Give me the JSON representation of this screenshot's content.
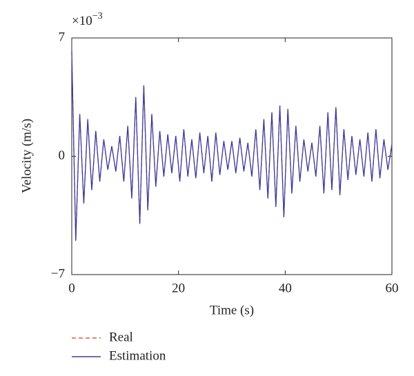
{
  "chart_data": {
    "type": "line",
    "xlabel": "Time (s)",
    "ylabel": "Velocity (m/s)",
    "y_multiplier": {
      "base": "×10",
      "exponent": "−3"
    },
    "xlim": [
      0,
      60
    ],
    "xticks": [
      0,
      20,
      40,
      60
    ],
    "ylim": [
      -7,
      7
    ],
    "yticks": [
      {
        "value": -7,
        "label": "−7"
      },
      0,
      7
    ],
    "grid": false,
    "legend": "below",
    "x": [
      0,
      0.75,
      1.5,
      2.25,
      3,
      3.75,
      4.5,
      5.25,
      6,
      6.75,
      7.5,
      8.25,
      9,
      9.75,
      10.5,
      11.25,
      12,
      12.75,
      13.5,
      14.25,
      15,
      15.75,
      16.5,
      17.25,
      18,
      18.75,
      19.5,
      20.25,
      21,
      21.75,
      22.5,
      23.25,
      24,
      24.75,
      25.5,
      26.25,
      27,
      27.75,
      28.5,
      29.25,
      30,
      30.75,
      31.5,
      32.25,
      33,
      33.75,
      34.5,
      35.25,
      36,
      36.75,
      37.5,
      38.25,
      39,
      39.75,
      40.5,
      41.25,
      42,
      42.75,
      43.5,
      44.25,
      45,
      45.75,
      46.5,
      47.25,
      48,
      48.75,
      49.5,
      50.25,
      51,
      51.75,
      52.5,
      53.25,
      54,
      54.75,
      55.5,
      56.25,
      57,
      57.75,
      58.5,
      59.25,
      60
    ],
    "series": [
      {
        "name": "Real",
        "color": "#d9632b",
        "dash": true,
        "values": [
          6.2,
          -5.0,
          2.5,
          -2.8,
          2.2,
          -2.0,
          1.5,
          -1.5,
          1.0,
          -0.8,
          0.6,
          -0.9,
          1.2,
          -1.5,
          1.8,
          -2.5,
          3.5,
          -4.0,
          4.2,
          -3.2,
          2.5,
          -1.8,
          1.5,
          -1.2,
          1.3,
          -1.0,
          1.2,
          -1.5,
          1.6,
          -1.2,
          1.0,
          -1.3,
          1.4,
          -1.0,
          1.2,
          -1.5,
          1.4,
          -1.1,
          0.9,
          -0.8,
          0.9,
          -1.0,
          1.1,
          -0.9,
          0.8,
          -1.2,
          1.6,
          -2.0,
          2.2,
          -2.5,
          2.6,
          -3.0,
          3.0,
          -3.6,
          2.8,
          -2.2,
          1.8,
          -1.5,
          1.0,
          -0.9,
          0.8,
          -1.2,
          1.8,
          -2.2,
          2.6,
          -2.0,
          2.9,
          -2.3,
          1.6,
          -1.4,
          1.2,
          -1.1,
          1.0,
          -1.2,
          1.4,
          -1.5,
          1.6,
          -1.3,
          1.0,
          -0.8,
          0.7
        ]
      },
      {
        "name": "Estimation",
        "color": "#3b3ba0",
        "dash": false,
        "values": [
          6.2,
          -5.0,
          2.5,
          -2.8,
          2.2,
          -2.0,
          1.5,
          -1.5,
          1.0,
          -0.8,
          0.6,
          -0.9,
          1.2,
          -1.5,
          1.8,
          -2.5,
          3.5,
          -4.0,
          4.2,
          -3.2,
          2.5,
          -1.8,
          1.5,
          -1.2,
          1.3,
          -1.0,
          1.2,
          -1.5,
          1.6,
          -1.2,
          1.0,
          -1.3,
          1.4,
          -1.0,
          1.2,
          -1.5,
          1.4,
          -1.1,
          0.9,
          -0.8,
          0.9,
          -1.0,
          1.1,
          -0.9,
          0.8,
          -1.2,
          1.6,
          -2.0,
          2.2,
          -2.5,
          2.6,
          -3.0,
          3.0,
          -3.6,
          2.8,
          -2.2,
          1.8,
          -1.5,
          1.0,
          -0.9,
          0.8,
          -1.2,
          1.8,
          -2.2,
          2.6,
          -2.0,
          2.9,
          -2.3,
          1.6,
          -1.4,
          1.2,
          -1.1,
          1.0,
          -1.2,
          1.4,
          -1.5,
          1.6,
          -1.3,
          1.0,
          -0.8,
          0.7
        ]
      }
    ]
  }
}
